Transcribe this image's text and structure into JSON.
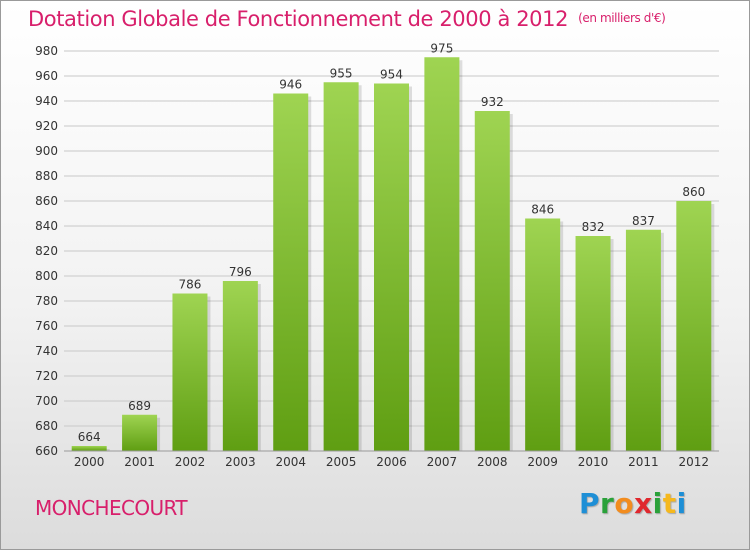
{
  "title": {
    "main": "Dotation Globale de Fonctionnement de 2000 à 2012",
    "unit": "(en milliers d'€)"
  },
  "commune": "MONCHECOURT",
  "logo": {
    "letters": [
      {
        "ch": "P",
        "color": "#1e8fd6"
      },
      {
        "ch": "r",
        "color": "#2aa13a"
      },
      {
        "ch": "o",
        "color": "#f28c1e"
      },
      {
        "ch": "x",
        "color": "#e0282e"
      },
      {
        "ch": "i",
        "color": "#2aa13a"
      },
      {
        "ch": "t",
        "color": "#f5b81e"
      },
      {
        "ch": "i",
        "color": "#1e8fd6"
      }
    ]
  },
  "colors": {
    "title": "#d81f6b",
    "bar_light": "#9fd452",
    "bar_dark": "#5f9e12",
    "grid": "#c8c8c8",
    "axis_text": "#333333"
  },
  "chart_data": {
    "type": "bar",
    "categories": [
      "2000",
      "2001",
      "2002",
      "2003",
      "2004",
      "2005",
      "2006",
      "2007",
      "2008",
      "2009",
      "2010",
      "2011",
      "2012"
    ],
    "values": [
      664,
      689,
      786,
      796,
      946,
      955,
      954,
      975,
      932,
      846,
      832,
      837,
      860
    ],
    "ylim": [
      660,
      980
    ],
    "yticks": [
      660,
      680,
      700,
      720,
      740,
      760,
      780,
      800,
      820,
      840,
      860,
      880,
      900,
      920,
      940,
      960,
      980
    ],
    "grid": true,
    "legend": "none"
  }
}
